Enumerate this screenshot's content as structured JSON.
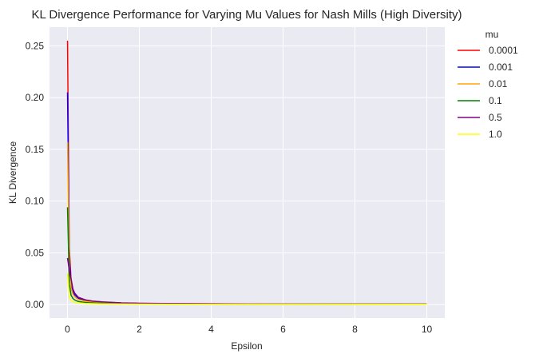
{
  "chart_data": {
    "type": "line",
    "title": "KL Divergence Performance for Varying Mu Values for Nash Mills (High Diversity)",
    "xlabel": "Epsilon",
    "ylabel": "KL Divergence",
    "xlim": [
      -0.5,
      10.5
    ],
    "ylim": [
      -0.013,
      0.268
    ],
    "xticks": [
      "0",
      "2",
      "4",
      "6",
      "8",
      "10"
    ],
    "yticks": [
      "0.00",
      "0.05",
      "0.10",
      "0.15",
      "0.20",
      "0.25"
    ],
    "grid": true,
    "legend": {
      "title": "mu",
      "placement": "outside-top-right"
    },
    "series": [
      {
        "name": "0.0001",
        "color": "#ff0000",
        "x": [
          0.001,
          0.05,
          0.1,
          0.15,
          0.2,
          0.3,
          0.5,
          0.7,
          1,
          1.5,
          2,
          3,
          5,
          10
        ],
        "y": [
          0.255,
          0.055,
          0.024,
          0.015,
          0.011,
          0.007,
          0.0045,
          0.0033,
          0.0024,
          0.0016,
          0.0012,
          0.0009,
          0.0006,
          0.0004
        ]
      },
      {
        "name": "0.001",
        "color": "#0000ff",
        "x": [
          0.001,
          0.05,
          0.1,
          0.15,
          0.2,
          0.3,
          0.5,
          0.7,
          1,
          1.5,
          2,
          3,
          5,
          10
        ],
        "y": [
          0.205,
          0.045,
          0.02,
          0.013,
          0.0095,
          0.006,
          0.004,
          0.003,
          0.0022,
          0.0015,
          0.0011,
          0.0008,
          0.0005,
          0.0004
        ]
      },
      {
        "name": "0.01",
        "color": "#ffa500",
        "x": [
          0.001,
          0.05,
          0.1,
          0.15,
          0.2,
          0.3,
          0.5,
          0.7,
          1,
          1.5,
          2,
          3,
          5,
          10
        ],
        "y": [
          0.157,
          0.035,
          0.016,
          0.01,
          0.0075,
          0.005,
          0.0032,
          0.0024,
          0.0018,
          0.0012,
          0.0009,
          0.0007,
          0.0005,
          0.0004
        ]
      },
      {
        "name": "0.1",
        "color": "#008000",
        "x": [
          0.001,
          0.05,
          0.1,
          0.15,
          0.2,
          0.3,
          0.5,
          0.7,
          1,
          1.5,
          2,
          3,
          5,
          10
        ],
        "y": [
          0.094,
          0.02,
          0.009,
          0.006,
          0.0045,
          0.003,
          0.002,
          0.0016,
          0.0012,
          0.0009,
          0.0007,
          0.0006,
          0.0005,
          0.0004
        ]
      },
      {
        "name": "0.5",
        "color": "#800080",
        "x": [
          0.001,
          0.05,
          0.1,
          0.15,
          0.2,
          0.3,
          0.5,
          0.7,
          1,
          1.5,
          2,
          3,
          5,
          10
        ],
        "y": [
          0.045,
          0.033,
          0.025,
          0.015,
          0.011,
          0.007,
          0.0045,
          0.0033,
          0.0025,
          0.0017,
          0.0013,
          0.001,
          0.0007,
          0.0005
        ]
      },
      {
        "name": "1.0",
        "color": "#ffff00",
        "x": [
          0.001,
          0.05,
          0.1,
          0.15,
          0.2,
          0.3,
          0.5,
          0.7,
          1,
          1.5,
          2,
          3,
          5,
          10
        ],
        "y": [
          0.03,
          0.008,
          0.004,
          0.003,
          0.0022,
          0.0016,
          0.0011,
          0.0009,
          0.0007,
          0.0006,
          0.0005,
          0.0004,
          0.0004,
          0.0003
        ]
      }
    ]
  }
}
